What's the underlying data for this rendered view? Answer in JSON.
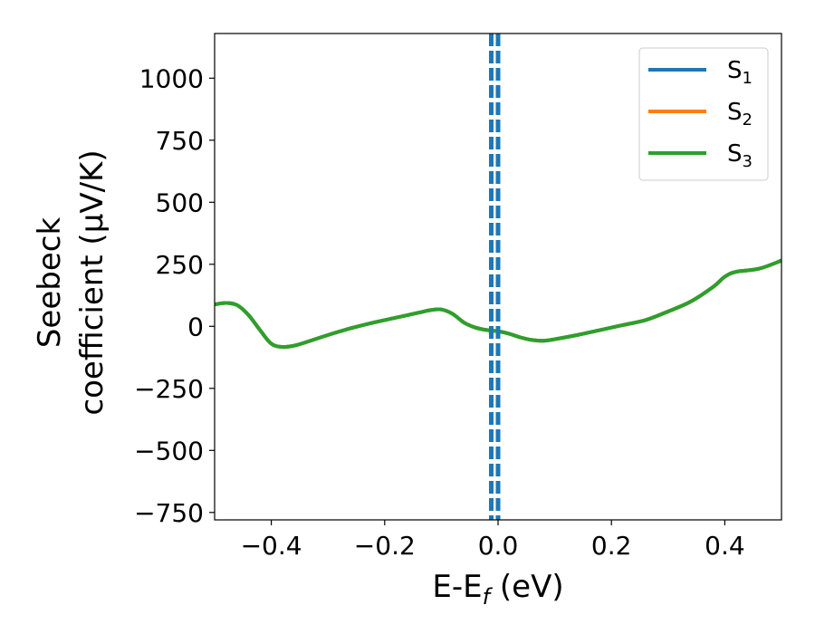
{
  "chart_data": {
    "type": "line",
    "title": "",
    "xlabel": "E-E",
    "xlabel_sub": "f",
    "xlabel_unit": " (eV)",
    "ylabel_line1": "Seebeck",
    "ylabel_line2": "coefficient  (μV/K)",
    "xlim": [
      -0.5,
      0.5
    ],
    "ylim": [
      -780,
      1180
    ],
    "x_ticks": [
      -0.4,
      -0.2,
      0.0,
      0.2,
      0.4
    ],
    "x_tick_labels": [
      "−0.4",
      "−0.2",
      "0.0",
      "0.2",
      "0.4"
    ],
    "y_ticks": [
      -750,
      -500,
      -250,
      0,
      250,
      500,
      750,
      1000
    ],
    "y_tick_labels": [
      "−750",
      "−500",
      "−250",
      "0",
      "250",
      "500",
      "750",
      "1000"
    ],
    "grid": false,
    "legend_position": "top-right",
    "series": [
      {
        "name": "S",
        "sub": "1",
        "color": "#1f77b4",
        "x": [
          -0.5,
          -0.48,
          -0.46,
          -0.44,
          -0.42,
          -0.4,
          -0.38,
          -0.36,
          -0.34,
          -0.3,
          -0.26,
          -0.22,
          -0.18,
          -0.14,
          -0.12,
          -0.1,
          -0.08,
          -0.06,
          -0.04,
          -0.02,
          0.0,
          0.02,
          0.04,
          0.06,
          0.08,
          0.1,
          0.14,
          0.18,
          0.22,
          0.26,
          0.3,
          0.34,
          0.38,
          0.4,
          0.42,
          0.46,
          0.5
        ],
        "y": [
          88,
          94,
          85,
          45,
          -15,
          -70,
          -83,
          -78,
          -65,
          -35,
          -8,
          15,
          35,
          55,
          65,
          68,
          50,
          15,
          -5,
          -15,
          -20,
          -30,
          -45,
          -55,
          -58,
          -52,
          -35,
          -15,
          5,
          25,
          60,
          100,
          160,
          200,
          220,
          232,
          265
        ]
      },
      {
        "name": "S",
        "sub": "2",
        "color": "#ff7f0e",
        "x": [
          -0.5,
          -0.48,
          -0.46,
          -0.44,
          -0.42,
          -0.4,
          -0.38,
          -0.36,
          -0.34,
          -0.3,
          -0.26,
          -0.22,
          -0.18,
          -0.14,
          -0.12,
          -0.1,
          -0.08,
          -0.06,
          -0.04,
          -0.02,
          0.0,
          0.02,
          0.04,
          0.06,
          0.08,
          0.1,
          0.14,
          0.18,
          0.22,
          0.26,
          0.3,
          0.34,
          0.38,
          0.4,
          0.42,
          0.46,
          0.5
        ],
        "y": [
          88,
          94,
          85,
          45,
          -15,
          -70,
          -83,
          -78,
          -65,
          -35,
          -8,
          15,
          35,
          55,
          65,
          68,
          50,
          15,
          -5,
          -15,
          -20,
          -30,
          -45,
          -55,
          -58,
          -52,
          -35,
          -15,
          5,
          25,
          60,
          100,
          160,
          200,
          220,
          232,
          265
        ]
      },
      {
        "name": "S",
        "sub": "3",
        "color": "#2ca02c",
        "x": [
          -0.5,
          -0.48,
          -0.46,
          -0.44,
          -0.42,
          -0.4,
          -0.38,
          -0.36,
          -0.34,
          -0.3,
          -0.26,
          -0.22,
          -0.18,
          -0.14,
          -0.12,
          -0.1,
          -0.08,
          -0.06,
          -0.04,
          -0.02,
          0.0,
          0.02,
          0.04,
          0.06,
          0.08,
          0.1,
          0.14,
          0.18,
          0.22,
          0.26,
          0.3,
          0.34,
          0.38,
          0.4,
          0.42,
          0.46,
          0.5
        ],
        "y": [
          88,
          94,
          85,
          45,
          -15,
          -70,
          -83,
          -78,
          -65,
          -35,
          -8,
          15,
          35,
          55,
          65,
          68,
          50,
          15,
          -5,
          -15,
          -20,
          -30,
          -45,
          -55,
          -58,
          -52,
          -35,
          -15,
          5,
          25,
          60,
          100,
          160,
          200,
          220,
          232,
          265
        ]
      }
    ],
    "vertical_lines": [
      {
        "x": 0.0,
        "color": "#000000",
        "style": "dashed"
      },
      {
        "x": -0.012,
        "color": "#1f77b4",
        "style": "dashed"
      },
      {
        "x": 0.0,
        "color": "#1f77b4",
        "style": "dashed"
      }
    ]
  }
}
